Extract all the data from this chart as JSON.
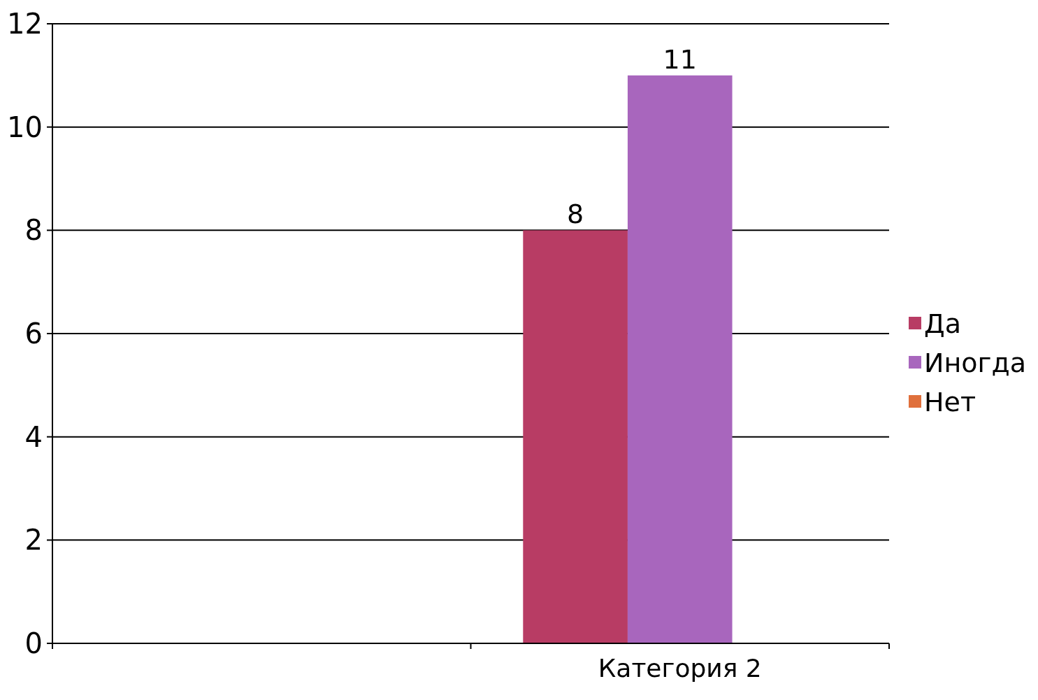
{
  "chart_data": {
    "type": "bar",
    "categories": [
      null,
      "Категория 2"
    ],
    "series": [
      {
        "name": "Да",
        "color": "#b83c64",
        "values": [
          null,
          8
        ]
      },
      {
        "name": "Иногда",
        "color": "#a866bd",
        "values": [
          null,
          11
        ]
      },
      {
        "name": "Нет",
        "color": "#e0703c",
        "values": [
          null,
          null
        ]
      }
    ],
    "ylim": [
      0,
      12
    ],
    "yticks": [
      0,
      2,
      4,
      6,
      8,
      10,
      12
    ],
    "grid": "y",
    "legend": "right",
    "data_labels": true
  }
}
